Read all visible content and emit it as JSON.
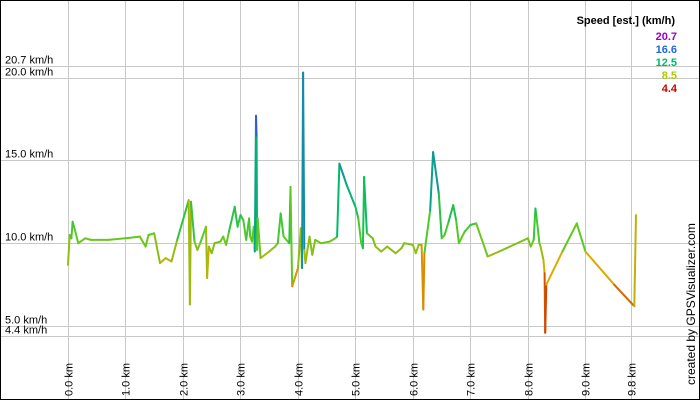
{
  "chart_data": {
    "type": "line",
    "title": "",
    "xlabel": "",
    "ylabel": "",
    "x_unit": "km",
    "y_unit": "km/h",
    "xlim": [
      0,
      10.75
    ],
    "ylim": [
      3.5,
      22.8
    ],
    "grid": true,
    "y_ticks": [
      {
        "value": 20.7,
        "label": "20.7 km/h"
      },
      {
        "value": 20.0,
        "label": "20.0 km/h"
      },
      {
        "value": 15.0,
        "label": "15.0 km/h"
      },
      {
        "value": 10.0,
        "label": "10.0 km/h"
      },
      {
        "value": 5.0,
        "label": "5.0 km/h"
      },
      {
        "value": 4.4,
        "label": "4.4 km/h"
      }
    ],
    "x_ticks": [
      {
        "value": 0.0,
        "label": "0.0 km"
      },
      {
        "value": 1.0,
        "label": "1.0 km"
      },
      {
        "value": 2.0,
        "label": "2.0 km"
      },
      {
        "value": 3.0,
        "label": "3.0 km"
      },
      {
        "value": 4.0,
        "label": "4.0 km"
      },
      {
        "value": 5.0,
        "label": "5.0 km"
      },
      {
        "value": 6.0,
        "label": "6.0 km"
      },
      {
        "value": 7.0,
        "label": "7.0 km"
      },
      {
        "value": 8.0,
        "label": "8.0 km"
      },
      {
        "value": 9.0,
        "label": "9.0 km"
      },
      {
        "value": 9.8,
        "label": "9.8 km"
      }
    ],
    "legend": {
      "title": "Speed [est.] (km/h)",
      "placement": "top-right",
      "entries": [
        {
          "label": "20.7",
          "color": "#9900cc"
        },
        {
          "label": "16.6",
          "color": "#2266dd"
        },
        {
          "label": "12.5",
          "color": "#00bb66"
        },
        {
          "label": "8.5",
          "color": "#aacc00"
        },
        {
          "label": "4.4",
          "color": "#cc0000"
        }
      ]
    },
    "color_scale": {
      "min": 4.4,
      "max": 20.7,
      "stops": [
        {
          "value": 4.4,
          "color": "#cc0000"
        },
        {
          "value": 8.5,
          "color": "#ddaa00"
        },
        {
          "value": 10.5,
          "color": "#55cc22"
        },
        {
          "value": 12.5,
          "color": "#00bb66"
        },
        {
          "value": 16.6,
          "color": "#2266dd"
        },
        {
          "value": 20.7,
          "color": "#9900cc"
        }
      ]
    },
    "series": [
      {
        "points": [
          [
            0.0,
            8.7
          ],
          [
            0.03,
            10.5
          ],
          [
            0.06,
            10.3
          ],
          [
            0.08,
            11.3
          ],
          [
            0.12,
            10.8
          ],
          [
            0.18,
            10.0
          ],
          [
            0.3,
            10.3
          ],
          [
            0.4,
            10.2
          ],
          [
            0.7,
            10.2
          ],
          [
            1.0,
            10.3
          ],
          [
            1.25,
            10.4
          ],
          [
            1.35,
            9.8
          ],
          [
            1.4,
            10.5
          ],
          [
            1.5,
            10.6
          ],
          [
            1.6,
            8.8
          ],
          [
            1.7,
            9.1
          ],
          [
            1.8,
            8.9
          ],
          [
            1.9,
            10.2
          ],
          [
            2.1,
            12.6
          ],
          [
            2.12,
            6.3
          ],
          [
            2.14,
            12.5
          ],
          [
            2.2,
            10.1
          ],
          [
            2.25,
            9.6
          ],
          [
            2.3,
            10.0
          ],
          [
            2.4,
            11.0
          ],
          [
            2.42,
            7.9
          ],
          [
            2.45,
            9.8
          ],
          [
            2.5,
            9.4
          ],
          [
            2.55,
            10.0
          ],
          [
            2.65,
            10.1
          ],
          [
            2.7,
            10.4
          ],
          [
            2.75,
            9.9
          ],
          [
            2.8,
            10.7
          ],
          [
            2.9,
            12.2
          ],
          [
            2.95,
            11.0
          ],
          [
            3.0,
            11.7
          ],
          [
            3.05,
            11.4
          ],
          [
            3.1,
            10.2
          ],
          [
            3.15,
            11.5
          ],
          [
            3.17,
            10.4
          ],
          [
            3.2,
            10.1
          ],
          [
            3.23,
            11.0
          ],
          [
            3.25,
            9.5
          ],
          [
            3.27,
            17.7
          ],
          [
            3.28,
            16.4
          ],
          [
            3.29,
            9.6
          ],
          [
            3.3,
            11.5
          ],
          [
            3.35,
            9.1
          ],
          [
            3.5,
            9.5
          ],
          [
            3.6,
            9.8
          ],
          [
            3.65,
            10.0
          ],
          [
            3.7,
            11.8
          ],
          [
            3.75,
            10.4
          ],
          [
            3.85,
            10.0
          ],
          [
            3.87,
            13.4
          ],
          [
            3.9,
            7.4
          ],
          [
            4.0,
            8.5
          ],
          [
            4.05,
            10.9
          ],
          [
            4.07,
            8.5
          ],
          [
            4.09,
            20.3
          ],
          [
            4.11,
            9.6
          ],
          [
            4.13,
            8.8
          ],
          [
            4.2,
            10.4
          ],
          [
            4.25,
            9.3
          ],
          [
            4.3,
            10.2
          ],
          [
            4.4,
            10.0
          ],
          [
            4.55,
            10.1
          ],
          [
            4.65,
            10.3
          ],
          [
            4.68,
            10.4
          ],
          [
            4.72,
            14.8
          ],
          [
            4.8,
            14.0
          ],
          [
            4.85,
            13.5
          ],
          [
            5.0,
            12.2
          ],
          [
            5.05,
            11.5
          ],
          [
            5.1,
            10.0
          ],
          [
            5.13,
            9.7
          ],
          [
            5.15,
            14.0
          ],
          [
            5.2,
            10.6
          ],
          [
            5.3,
            10.3
          ],
          [
            5.35,
            9.8
          ],
          [
            5.45,
            9.5
          ],
          [
            5.55,
            9.8
          ],
          [
            5.7,
            9.4
          ],
          [
            5.8,
            9.7
          ],
          [
            5.85,
            10.0
          ],
          [
            6.0,
            9.9
          ],
          [
            6.05,
            9.4
          ],
          [
            6.1,
            9.9
          ],
          [
            6.15,
            9.9
          ],
          [
            6.18,
            6.0
          ],
          [
            6.2,
            9.4
          ],
          [
            6.3,
            12.0
          ],
          [
            6.35,
            15.5
          ],
          [
            6.45,
            13.0
          ],
          [
            6.5,
            10.3
          ],
          [
            6.55,
            10.5
          ],
          [
            6.62,
            11.3
          ],
          [
            6.7,
            12.3
          ],
          [
            6.75,
            11.4
          ],
          [
            6.8,
            10.0
          ],
          [
            6.9,
            10.7
          ],
          [
            7.0,
            11.1
          ],
          [
            7.1,
            11.2
          ],
          [
            7.3,
            9.2
          ],
          [
            7.5,
            9.5
          ],
          [
            8.0,
            10.3
          ],
          [
            8.05,
            9.8
          ],
          [
            8.1,
            10.2
          ],
          [
            8.13,
            12.1
          ],
          [
            8.15,
            11.6
          ],
          [
            8.2,
            10.0
          ],
          [
            8.22,
            9.8
          ],
          [
            8.27,
            9.0
          ],
          [
            8.29,
            8.2
          ],
          [
            8.3,
            4.6
          ],
          [
            8.32,
            7.5
          ],
          [
            8.6,
            9.5
          ],
          [
            8.85,
            11.2
          ],
          [
            9.0,
            9.5
          ],
          [
            9.5,
            7.5
          ],
          [
            9.85,
            6.2
          ],
          [
            9.88,
            11.7
          ]
        ]
      }
    ]
  },
  "credit": "created by GPSVisualizer.com"
}
